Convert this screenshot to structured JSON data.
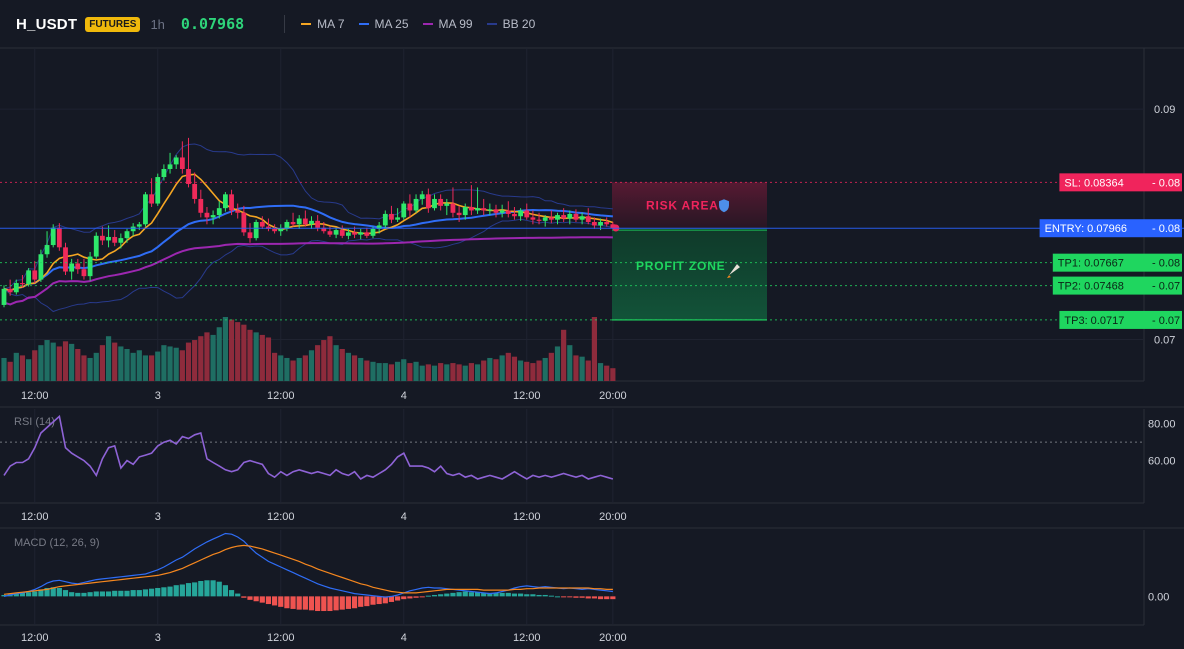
{
  "header": {
    "symbol": "H_USDT",
    "badge": "FUTURES",
    "timeframe": "1h",
    "price": "0.07968"
  },
  "legend": [
    {
      "label": "MA 7",
      "color": "#f5a623"
    },
    {
      "label": "MA 25",
      "color": "#2f6df6"
    },
    {
      "label": "MA 99",
      "color": "#9c27b0"
    },
    {
      "label": "BB 20",
      "color": "#283a8c"
    }
  ],
  "colors": {
    "up": "#26a69a",
    "up_bright": "#2ee86b",
    "down": "#ef2a5a",
    "vol_up": "#1f6e63",
    "vol_down": "#8e2b3c",
    "sl": "#f0245c",
    "entry": "#2962ff",
    "tp": "#1fd65f",
    "rsi": "#8e63d6",
    "macd": "#2f6df6",
    "signal": "#f5871f",
    "hist_up": "#26a69a",
    "hist_down": "#ef5350"
  },
  "chart_data": {
    "type": "candlestick",
    "x_ticks": [
      {
        "i": 5,
        "label": "12:00"
      },
      {
        "i": 25,
        "label": "3"
      },
      {
        "i": 45,
        "label": "12:00"
      },
      {
        "i": 65,
        "label": "4"
      },
      {
        "i": 85,
        "label": "12:00"
      },
      {
        "i": 99,
        "label": "20:00"
      }
    ],
    "y_ticks": [
      0.09,
      0.07
    ],
    "ylim": [
      0.0664,
      0.0953
    ],
    "levels": [
      {
        "key": "sl",
        "label": "SL: 0.08364",
        "tag": "0.08",
        "value": 0.08364,
        "color": "#f0245c"
      },
      {
        "key": "entry",
        "label": "ENTRY: 0.07966",
        "tag": "0.08",
        "value": 0.07966,
        "color": "#2962ff"
      },
      {
        "key": "tp1",
        "label": "TP1: 0.07667",
        "tag": "0.08",
        "value": 0.07667,
        "color": "#1fd65f"
      },
      {
        "key": "tp2",
        "label": "TP2: 0.07468",
        "tag": "0.07",
        "value": 0.07468,
        "color": "#1fd65f"
      },
      {
        "key": "tp3",
        "label": "TP3: 0.0717",
        "tag": "0.07",
        "value": 0.0717,
        "color": "#1fd65f"
      }
    ],
    "risk_label": "RISK AREA",
    "profit_label": "PROFIT ZONE",
    "candles": [
      [
        0.073,
        0.0747,
        0.0728,
        0.0744
      ],
      [
        0.0744,
        0.0752,
        0.0738,
        0.0741
      ],
      [
        0.0741,
        0.0752,
        0.0739,
        0.0749
      ],
      [
        0.0749,
        0.0756,
        0.0745,
        0.0748
      ],
      [
        0.0748,
        0.0762,
        0.0746,
        0.076
      ],
      [
        0.076,
        0.0768,
        0.0749,
        0.0752
      ],
      [
        0.0752,
        0.0778,
        0.075,
        0.0774
      ],
      [
        0.0774,
        0.0794,
        0.0771,
        0.0782
      ],
      [
        0.0782,
        0.08,
        0.078,
        0.0797
      ],
      [
        0.0797,
        0.0801,
        0.0777,
        0.078
      ],
      [
        0.078,
        0.0784,
        0.0756,
        0.0759
      ],
      [
        0.0759,
        0.077,
        0.0752,
        0.0766
      ],
      [
        0.0766,
        0.077,
        0.0757,
        0.0761
      ],
      [
        0.0761,
        0.077,
        0.0752,
        0.0755
      ],
      [
        0.0755,
        0.0776,
        0.0751,
        0.0772
      ],
      [
        0.0772,
        0.0793,
        0.077,
        0.079
      ],
      [
        0.079,
        0.0798,
        0.0782,
        0.0786
      ],
      [
        0.0786,
        0.0799,
        0.078,
        0.0789
      ],
      [
        0.0789,
        0.0795,
        0.0781,
        0.0784
      ],
      [
        0.0784,
        0.0792,
        0.0779,
        0.0788
      ],
      [
        0.0788,
        0.0796,
        0.0784,
        0.0794
      ],
      [
        0.0794,
        0.0801,
        0.079,
        0.0798
      ],
      [
        0.0798,
        0.0802,
        0.0795,
        0.08
      ],
      [
        0.08,
        0.0828,
        0.0798,
        0.0826
      ],
      [
        0.0826,
        0.084,
        0.0815,
        0.0818
      ],
      [
        0.0818,
        0.0844,
        0.0816,
        0.0841
      ],
      [
        0.0841,
        0.0852,
        0.0838,
        0.0848
      ],
      [
        0.0848,
        0.0862,
        0.0844,
        0.0852
      ],
      [
        0.0852,
        0.086,
        0.0848,
        0.0858
      ],
      [
        0.0858,
        0.0872,
        0.0844,
        0.0848
      ],
      [
        0.0848,
        0.0875,
        0.0832,
        0.0835
      ],
      [
        0.0835,
        0.0845,
        0.0818,
        0.0822
      ],
      [
        0.0822,
        0.083,
        0.0806,
        0.081
      ],
      [
        0.081,
        0.0815,
        0.08,
        0.0806
      ],
      [
        0.0806,
        0.0812,
        0.08,
        0.0808
      ],
      [
        0.0808,
        0.082,
        0.0805,
        0.0814
      ],
      [
        0.0814,
        0.0828,
        0.0811,
        0.0826
      ],
      [
        0.0826,
        0.083,
        0.0808,
        0.0812
      ],
      [
        0.0812,
        0.0818,
        0.0805,
        0.081
      ],
      [
        0.081,
        0.0816,
        0.079,
        0.0793
      ],
      [
        0.0793,
        0.0801,
        0.0784,
        0.0788
      ],
      [
        0.0788,
        0.0804,
        0.0786,
        0.0802
      ],
      [
        0.0802,
        0.0807,
        0.0796,
        0.0798
      ],
      [
        0.0798,
        0.0805,
        0.0794,
        0.0796
      ],
      [
        0.0796,
        0.08,
        0.0792,
        0.0794
      ],
      [
        0.0794,
        0.08,
        0.079,
        0.0796
      ],
      [
        0.0796,
        0.0804,
        0.0794,
        0.0802
      ],
      [
        0.0802,
        0.081,
        0.0798,
        0.08
      ],
      [
        0.08,
        0.0808,
        0.0796,
        0.0805
      ],
      [
        0.0805,
        0.0812,
        0.0798,
        0.08
      ],
      [
        0.08,
        0.0807,
        0.0796,
        0.0803
      ],
      [
        0.0803,
        0.0808,
        0.0794,
        0.0797
      ],
      [
        0.0797,
        0.0802,
        0.0792,
        0.0794
      ],
      [
        0.0794,
        0.0798,
        0.0789,
        0.0791
      ],
      [
        0.0791,
        0.0797,
        0.0788,
        0.0795
      ],
      [
        0.0795,
        0.0799,
        0.0788,
        0.079
      ],
      [
        0.079,
        0.0796,
        0.0787,
        0.0793
      ],
      [
        0.0793,
        0.0798,
        0.0788,
        0.0791
      ],
      [
        0.0791,
        0.0796,
        0.0787,
        0.0793
      ],
      [
        0.0793,
        0.0797,
        0.0788,
        0.079
      ],
      [
        0.079,
        0.0798,
        0.0788,
        0.0796
      ],
      [
        0.0796,
        0.0802,
        0.0792,
        0.0799
      ],
      [
        0.0799,
        0.0812,
        0.0796,
        0.0809
      ],
      [
        0.0809,
        0.0816,
        0.0801,
        0.0804
      ],
      [
        0.0804,
        0.0814,
        0.0802,
        0.0806
      ],
      [
        0.0806,
        0.082,
        0.0804,
        0.0818
      ],
      [
        0.0818,
        0.0826,
        0.0806,
        0.0812
      ],
      [
        0.0812,
        0.0826,
        0.081,
        0.0822
      ],
      [
        0.0822,
        0.0829,
        0.0817,
        0.0826
      ],
      [
        0.0826,
        0.0831,
        0.081,
        0.0814
      ],
      [
        0.0814,
        0.0826,
        0.0812,
        0.0822
      ],
      [
        0.0822,
        0.0826,
        0.0812,
        0.0816
      ],
      [
        0.0816,
        0.0822,
        0.0808,
        0.0818
      ],
      [
        0.0818,
        0.0832,
        0.0806,
        0.081
      ],
      [
        0.081,
        0.0816,
        0.0802,
        0.0808
      ],
      [
        0.0808,
        0.0818,
        0.0804,
        0.0815
      ],
      [
        0.0815,
        0.0834,
        0.0808,
        0.0812
      ],
      [
        0.0812,
        0.0832,
        0.0809,
        0.0814
      ],
      [
        0.0814,
        0.0822,
        0.0808,
        0.0812
      ],
      [
        0.0812,
        0.0818,
        0.0808,
        0.0813
      ],
      [
        0.0813,
        0.0817,
        0.0806,
        0.081
      ],
      [
        0.081,
        0.0817,
        0.0806,
        0.0812
      ],
      [
        0.0812,
        0.082,
        0.0806,
        0.0809
      ],
      [
        0.0809,
        0.0815,
        0.0804,
        0.0807
      ],
      [
        0.0807,
        0.0814,
        0.0803,
        0.0812
      ],
      [
        0.0812,
        0.0818,
        0.0804,
        0.0806
      ],
      [
        0.0806,
        0.0812,
        0.08,
        0.0804
      ],
      [
        0.0804,
        0.081,
        0.08,
        0.0803
      ],
      [
        0.0803,
        0.0808,
        0.0798,
        0.0806
      ],
      [
        0.0806,
        0.0812,
        0.0801,
        0.0804
      ],
      [
        0.0804,
        0.081,
        0.08,
        0.0808
      ],
      [
        0.0808,
        0.0814,
        0.0802,
        0.0805
      ],
      [
        0.0805,
        0.0812,
        0.08,
        0.0809
      ],
      [
        0.0809,
        0.0813,
        0.0802,
        0.0804
      ],
      [
        0.0804,
        0.081,
        0.08,
        0.0807
      ],
      [
        0.0807,
        0.0814,
        0.08,
        0.0802
      ],
      [
        0.0802,
        0.0806,
        0.0796,
        0.0799
      ],
      [
        0.0799,
        0.0805,
        0.0795,
        0.0802
      ],
      [
        0.0802,
        0.0806,
        0.0798,
        0.08
      ],
      [
        0.08,
        0.0802,
        0.0796,
        0.07968
      ]
    ],
    "rsi": {
      "label": "RSI (14)",
      "ticks": [
        80.0,
        60.0
      ],
      "ylim": [
        37,
        88
      ],
      "overbought": 70,
      "values": [
        52,
        57,
        59,
        59,
        61,
        67,
        75,
        78,
        81,
        84,
        67,
        64,
        62,
        60,
        57,
        52,
        61,
        67,
        68,
        56,
        60,
        58,
        62,
        63,
        64,
        68,
        70,
        71,
        69,
        73,
        72,
        74,
        75,
        61,
        59,
        57,
        55,
        54,
        55,
        59,
        60,
        59,
        58,
        53,
        51,
        54,
        52,
        54,
        55,
        54,
        53,
        54,
        53,
        52,
        55,
        53,
        52,
        54,
        50,
        52,
        51,
        53,
        55,
        58,
        62,
        64,
        57,
        57,
        57,
        56,
        54,
        57,
        53,
        52,
        53,
        51,
        52,
        50,
        51,
        52,
        51,
        50,
        52,
        54,
        52,
        50,
        52,
        51,
        52,
        51,
        52,
        53,
        52,
        51,
        52,
        50,
        51,
        52,
        51,
        50
      ]
    },
    "macd": {
      "label": "MACD (12, 26, 9)",
      "ticks": [
        "0.00"
      ],
      "zero": 0,
      "macd_line": [
        0.0,
        0.02,
        0.04,
        0.05,
        0.07,
        0.1,
        0.14,
        0.19,
        0.22,
        0.23,
        0.21,
        0.19,
        0.18,
        0.2,
        0.22,
        0.24,
        0.25,
        0.26,
        0.27,
        0.28,
        0.29,
        0.3,
        0.31,
        0.32,
        0.35,
        0.38,
        0.42,
        0.47,
        0.52,
        0.56,
        0.62,
        0.68,
        0.73,
        0.78,
        0.82,
        0.86,
        0.9,
        0.89,
        0.85,
        0.79,
        0.7,
        0.62,
        0.56,
        0.5,
        0.46,
        0.42,
        0.38,
        0.34,
        0.3,
        0.26,
        0.22,
        0.18,
        0.15,
        0.12,
        0.1,
        0.08,
        0.06,
        0.04,
        0.03,
        0.02,
        0.01,
        0.0,
        -0.01,
        0.0,
        0.02,
        0.05,
        0.08,
        0.1,
        0.12,
        0.13,
        0.12,
        0.12,
        0.11,
        0.1,
        0.09,
        0.08,
        0.07,
        0.06,
        0.05,
        0.04,
        0.05,
        0.07,
        0.09,
        0.12,
        0.14,
        0.15,
        0.14,
        0.13,
        0.14,
        0.13,
        0.12,
        0.11,
        0.12,
        0.11,
        0.1,
        0.11,
        0.1,
        0.09,
        0.08,
        0.07
      ],
      "signal_line": [
        0.03,
        0.04,
        0.05,
        0.06,
        0.07,
        0.08,
        0.09,
        0.1,
        0.12,
        0.14,
        0.15,
        0.16,
        0.17,
        0.18,
        0.19,
        0.2,
        0.21,
        0.22,
        0.23,
        0.24,
        0.25,
        0.26,
        0.27,
        0.28,
        0.29,
        0.3,
        0.32,
        0.34,
        0.37,
        0.4,
        0.44,
        0.48,
        0.52,
        0.56,
        0.6,
        0.63,
        0.67,
        0.7,
        0.72,
        0.73,
        0.72,
        0.7,
        0.68,
        0.65,
        0.62,
        0.59,
        0.56,
        0.53,
        0.5,
        0.46,
        0.43,
        0.39,
        0.36,
        0.33,
        0.3,
        0.27,
        0.24,
        0.21,
        0.18,
        0.16,
        0.13,
        0.11,
        0.09,
        0.07,
        0.06,
        0.05,
        0.05,
        0.05,
        0.06,
        0.07,
        0.08,
        0.09,
        0.1,
        0.1,
        0.1,
        0.1,
        0.1,
        0.1,
        0.09,
        0.09,
        0.09,
        0.09,
        0.09,
        0.1,
        0.1,
        0.11,
        0.11,
        0.12,
        0.12,
        0.12,
        0.12,
        0.12,
        0.12,
        0.12,
        0.12,
        0.12,
        0.11,
        0.11,
        0.1,
        0.1
      ],
      "histogram": [
        0.02,
        0.03,
        0.04,
        0.05,
        0.06,
        0.07,
        0.1,
        0.12,
        0.13,
        0.12,
        0.09,
        0.06,
        0.05,
        0.05,
        0.06,
        0.07,
        0.07,
        0.07,
        0.08,
        0.08,
        0.08,
        0.09,
        0.09,
        0.1,
        0.11,
        0.12,
        0.13,
        0.14,
        0.16,
        0.17,
        0.19,
        0.2,
        0.22,
        0.23,
        0.23,
        0.21,
        0.16,
        0.09,
        0.04,
        -0.02,
        -0.05,
        -0.07,
        -0.09,
        -0.11,
        -0.13,
        -0.15,
        -0.17,
        -0.18,
        -0.19,
        -0.19,
        -0.2,
        -0.21,
        -0.21,
        -0.21,
        -0.2,
        -0.19,
        -0.18,
        -0.17,
        -0.15,
        -0.14,
        -0.12,
        -0.11,
        -0.1,
        -0.08,
        -0.06,
        -0.04,
        -0.03,
        -0.02,
        -0.01,
        0.01,
        0.02,
        0.03,
        0.04,
        0.05,
        0.06,
        0.07,
        0.06,
        0.06,
        0.05,
        0.05,
        0.05,
        0.05,
        0.05,
        0.04,
        0.04,
        0.03,
        0.03,
        0.02,
        0.02,
        0.01,
        0.0,
        -0.01,
        -0.01,
        -0.02,
        -0.02,
        -0.03,
        -0.03,
        -0.04,
        -0.04,
        -0.04
      ]
    },
    "volume": [
      18,
      15,
      22,
      20,
      17,
      24,
      28,
      32,
      30,
      27,
      31,
      29,
      25,
      20,
      18,
      22,
      28,
      35,
      30,
      27,
      25,
      22,
      24,
      20,
      20,
      23,
      28,
      27,
      26,
      24,
      30,
      32,
      35,
      38,
      36,
      42,
      50,
      48,
      46,
      44,
      40,
      38,
      36,
      34,
      22,
      20,
      18,
      16,
      18,
      20,
      24,
      28,
      32,
      35,
      28,
      25,
      22,
      20,
      18,
      16,
      15,
      14,
      14,
      13,
      15,
      17,
      14,
      15,
      12,
      13,
      12,
      14,
      13,
      14,
      13,
      12,
      14,
      13,
      16,
      18,
      17,
      20,
      22,
      19,
      16,
      15,
      14,
      16,
      18,
      22,
      27,
      40,
      28,
      20,
      19,
      16,
      50,
      14,
      12,
      10
    ]
  }
}
